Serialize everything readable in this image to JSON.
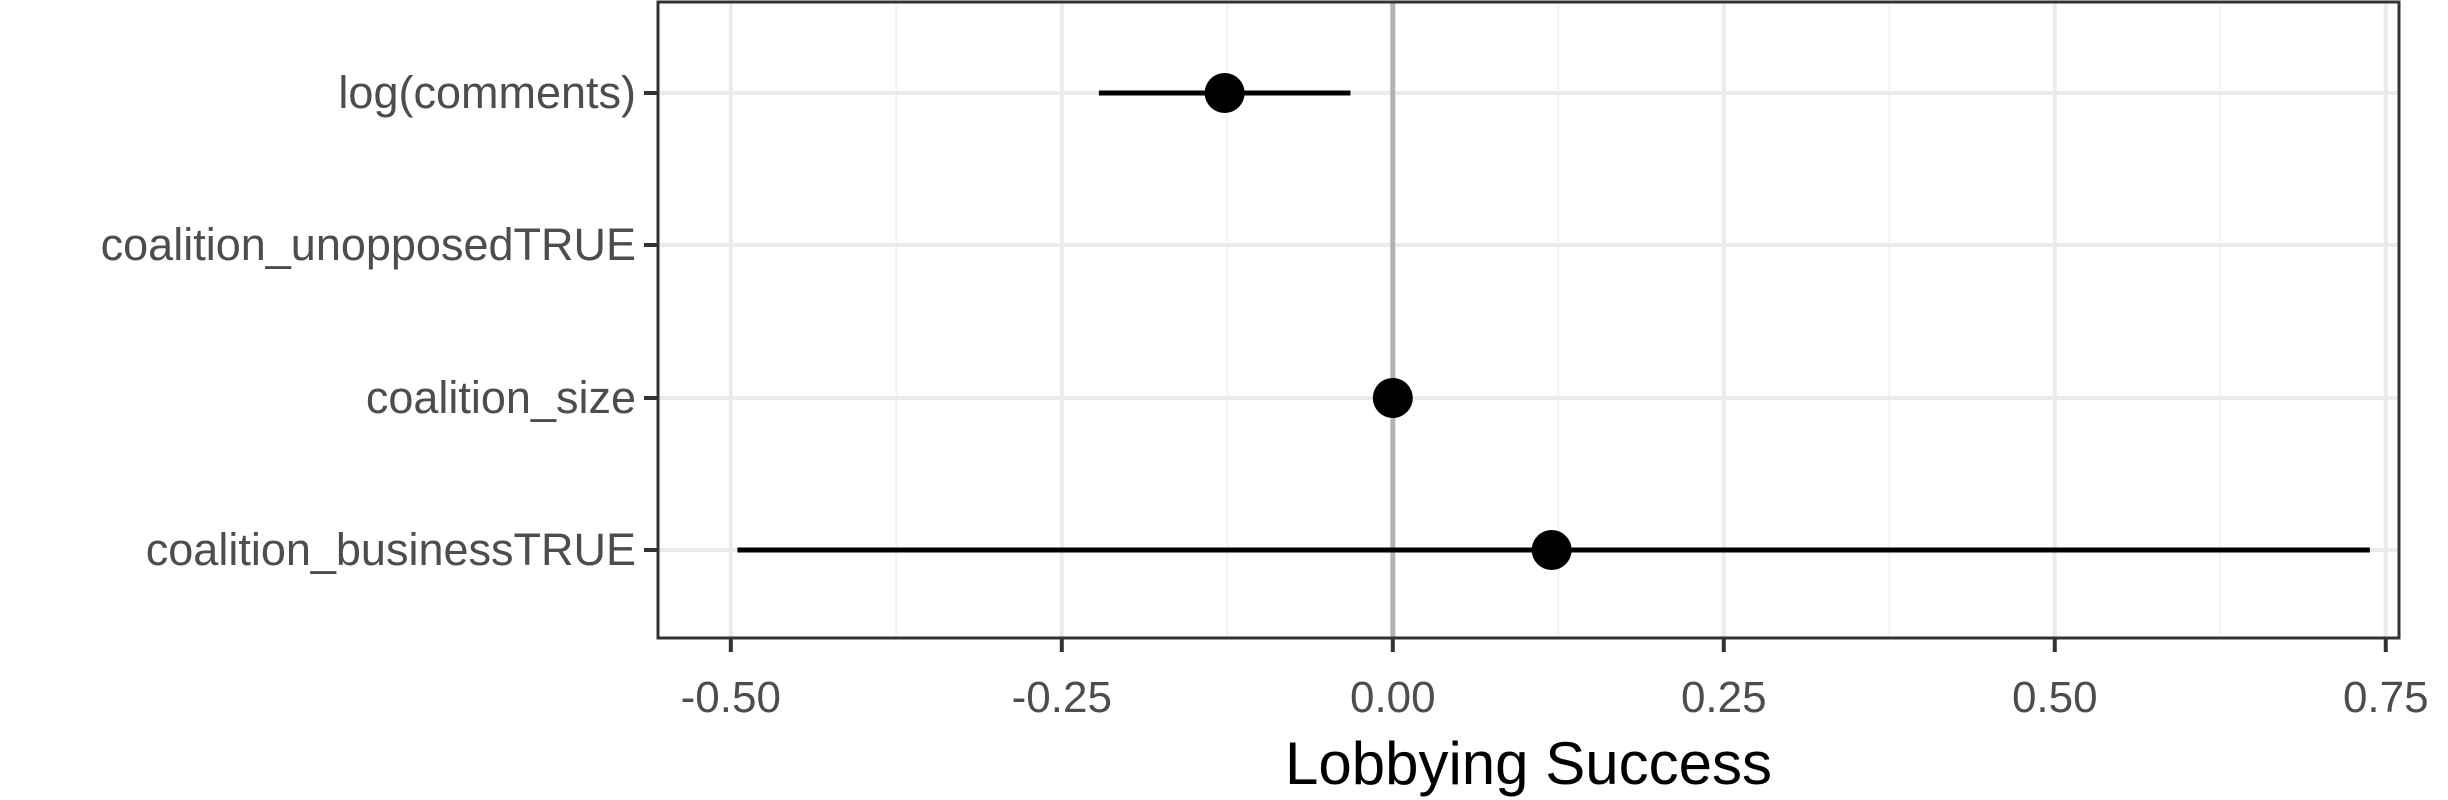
{
  "chart_data": {
    "type": "scatter",
    "subtype": "coefficient-plot",
    "title": "",
    "xlabel": "Lobbying Success",
    "ylabel": "",
    "xlim": [
      -0.555,
      0.76
    ],
    "xticks": [
      -0.5,
      -0.25,
      0.0,
      0.25,
      0.5,
      0.75
    ],
    "xtick_labels": [
      "-0.50",
      "-0.25",
      "0.00",
      "0.25",
      "0.50",
      "0.75"
    ],
    "categories": [
      "log(comments)",
      "coalition_unopposedTRUE",
      "coalition_size",
      "coalition_businessTRUE"
    ],
    "estimates": [
      -0.127,
      null,
      0.0,
      0.12
    ],
    "ci_low": [
      -0.222,
      null,
      null,
      -0.495
    ],
    "ci_high": [
      -0.032,
      null,
      null,
      0.738
    ],
    "reference_line_x": 0,
    "grid": true,
    "legend": "none",
    "colors": {
      "point": "#000000",
      "errorbar": "#000000",
      "grid_major": "#ebebeb",
      "grid_minor": "#f2f2f2",
      "reference_line": "#b3b3b3",
      "panel_border": "#333333",
      "tick_text": "#4d4d4d"
    }
  }
}
